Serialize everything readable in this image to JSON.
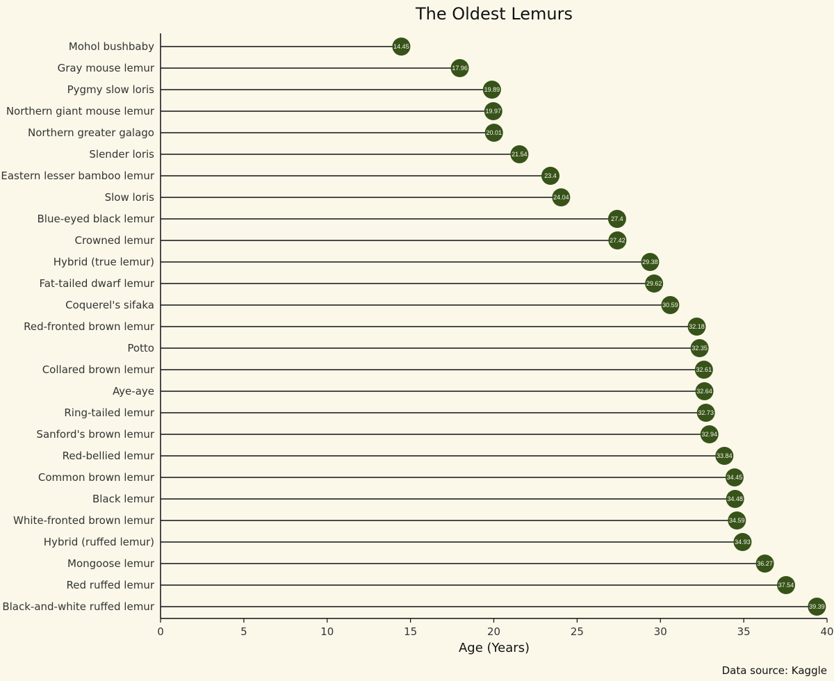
{
  "chart_data": {
    "type": "lollipop",
    "title": "The Oldest Lemurs",
    "xlabel": "Age (Years)",
    "ylabel": "",
    "xlim": [
      0,
      40
    ],
    "xticks": [
      0,
      5,
      10,
      15,
      20,
      25,
      30,
      35,
      40
    ],
    "grid": false,
    "source": "Data source: Kaggle",
    "colors": {
      "point": "#375319",
      "stem": "#111111",
      "background": "#fbf8ea"
    },
    "categories": [
      "Mohol bushbaby",
      "Gray mouse lemur",
      "Pygmy slow loris",
      "Northern giant mouse lemur",
      "Northern greater galago",
      "Slender loris",
      "Eastern lesser bamboo lemur",
      "Slow loris",
      "Blue-eyed black lemur",
      "Crowned lemur",
      "Hybrid (true lemur)",
      "Fat-tailed dwarf lemur",
      "Coquerel's sifaka",
      "Red-fronted brown lemur",
      "Potto",
      "Collared brown lemur",
      "Aye-aye",
      "Ring-tailed lemur",
      "Sanford's brown lemur",
      "Red-bellied lemur",
      "Common brown lemur",
      "Black lemur",
      "White-fronted brown lemur",
      "Hybrid (ruffed lemur)",
      "Mongoose lemur",
      "Red ruffed lemur",
      "Black-and-white ruffed lemur"
    ],
    "values": [
      14.45,
      17.96,
      19.89,
      19.97,
      20.01,
      21.54,
      23.4,
      24.04,
      27.4,
      27.42,
      29.38,
      29.62,
      30.59,
      32.18,
      32.35,
      32.61,
      32.64,
      32.73,
      32.94,
      33.84,
      34.45,
      34.48,
      34.59,
      34.93,
      36.27,
      37.54,
      39.39
    ]
  }
}
